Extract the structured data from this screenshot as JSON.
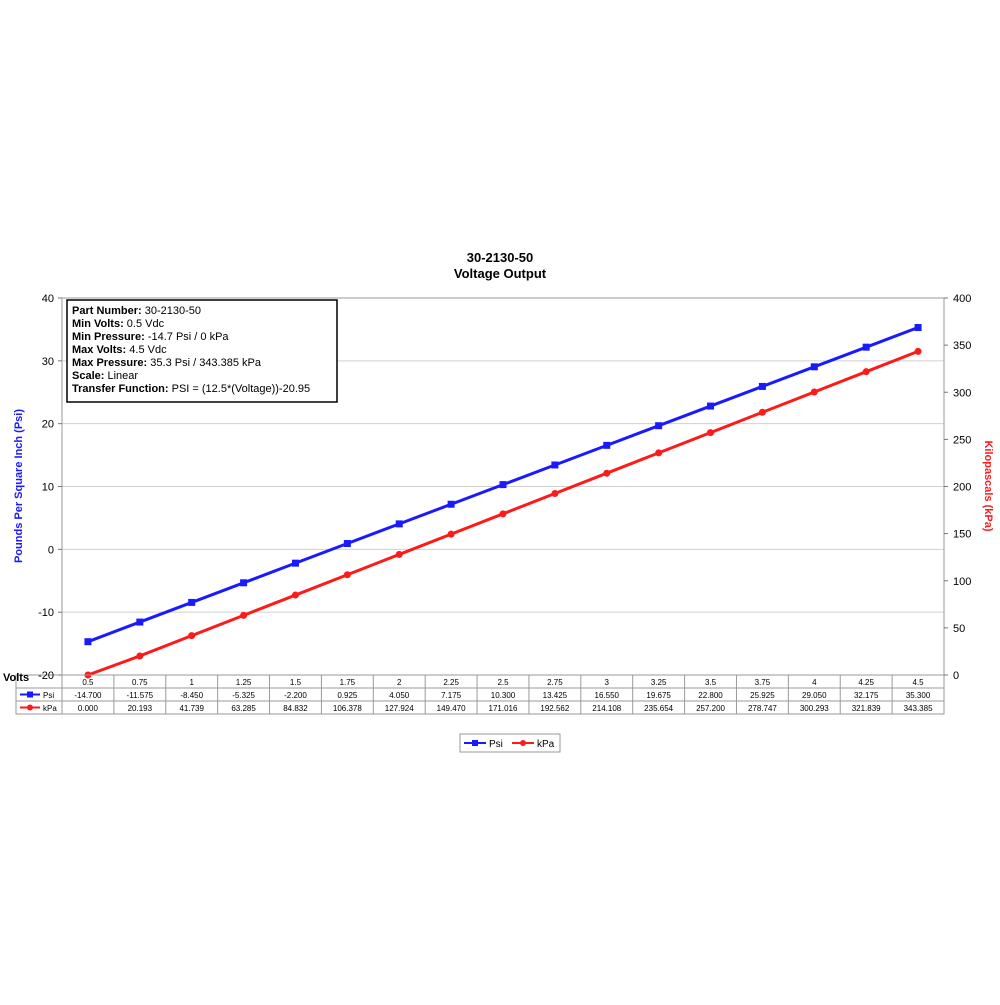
{
  "chart_data": {
    "type": "line",
    "title": "30-2130-50",
    "subtitle": "Voltage Output",
    "xlabel": "Volts",
    "ylabel_left": "Pounds Per Square Inch (Psi)",
    "ylabel_right": "Kilopascals (kPa)",
    "ylim_left": [
      -20,
      40
    ],
    "ylim_right": [
      0,
      400
    ],
    "yticks_left": [
      "40",
      "30",
      "20",
      "10",
      "0",
      "-10",
      "-20"
    ],
    "yticks_right": [
      "400",
      "350",
      "300",
      "250",
      "200",
      "150",
      "100",
      "50",
      "0"
    ],
    "grid": true,
    "legend_position": "bottom-center",
    "categories": [
      "0.5",
      "0.75",
      "1",
      "1.25",
      "1.5",
      "1.75",
      "2",
      "2.25",
      "2.5",
      "2.75",
      "3",
      "3.25",
      "3.5",
      "3.75",
      "4",
      "4.25",
      "4.5"
    ],
    "x": [
      0.5,
      0.75,
      1,
      1.25,
      1.5,
      1.75,
      2,
      2.25,
      2.5,
      2.75,
      3,
      3.25,
      3.5,
      3.75,
      4,
      4.25,
      4.5
    ],
    "series": [
      {
        "name": "Psi",
        "axis": "left",
        "color": "#1a1aff",
        "values": [
          -14.7,
          -11.575,
          -8.45,
          -5.325,
          -2.2,
          0.925,
          4.05,
          7.175,
          10.3,
          13.425,
          16.55,
          19.675,
          22.8,
          25.925,
          29.05,
          32.175,
          35.3
        ],
        "labels": [
          "-14.700",
          "-11.575",
          "-8.450",
          "-5.325",
          "-2.200",
          "0.925",
          "4.050",
          "7.175",
          "10.300",
          "13.425",
          "16.550",
          "19.675",
          "22.800",
          "25.925",
          "29.050",
          "32.175",
          "35.300"
        ]
      },
      {
        "name": "kPa",
        "axis": "right",
        "color": "#ff1a1a",
        "values": [
          0,
          20.193,
          41.739,
          63.285,
          84.832,
          106.378,
          127.924,
          149.47,
          171.016,
          192.562,
          214.108,
          235.654,
          257.2,
          278.747,
          300.293,
          321.839,
          343.385
        ],
        "labels": [
          "0.000",
          "20.193",
          "41.739",
          "63.285",
          "84.832",
          "106.378",
          "127.924",
          "149.470",
          "171.016",
          "192.562",
          "214.108",
          "235.654",
          "257.200",
          "278.747",
          "300.293",
          "321.839",
          "343.385"
        ]
      }
    ],
    "info_box": [
      {
        "key": "Part Number:",
        "value": "30-2130-50"
      },
      {
        "key": "Min Volts:",
        "value": "0.5 Vdc"
      },
      {
        "key": "Min Pressure:",
        "value": "-14.7 Psi / 0 kPa"
      },
      {
        "key": "Max Volts:",
        "value": "4.5 Vdc"
      },
      {
        "key": "Max Pressure:",
        "value": "35.3 Psi / 343.385 kPa"
      },
      {
        "key": "Scale:",
        "value": "Linear"
      },
      {
        "key": "Transfer Function:",
        "value": "PSI = (12.5*(Voltage))-20.95"
      }
    ]
  }
}
